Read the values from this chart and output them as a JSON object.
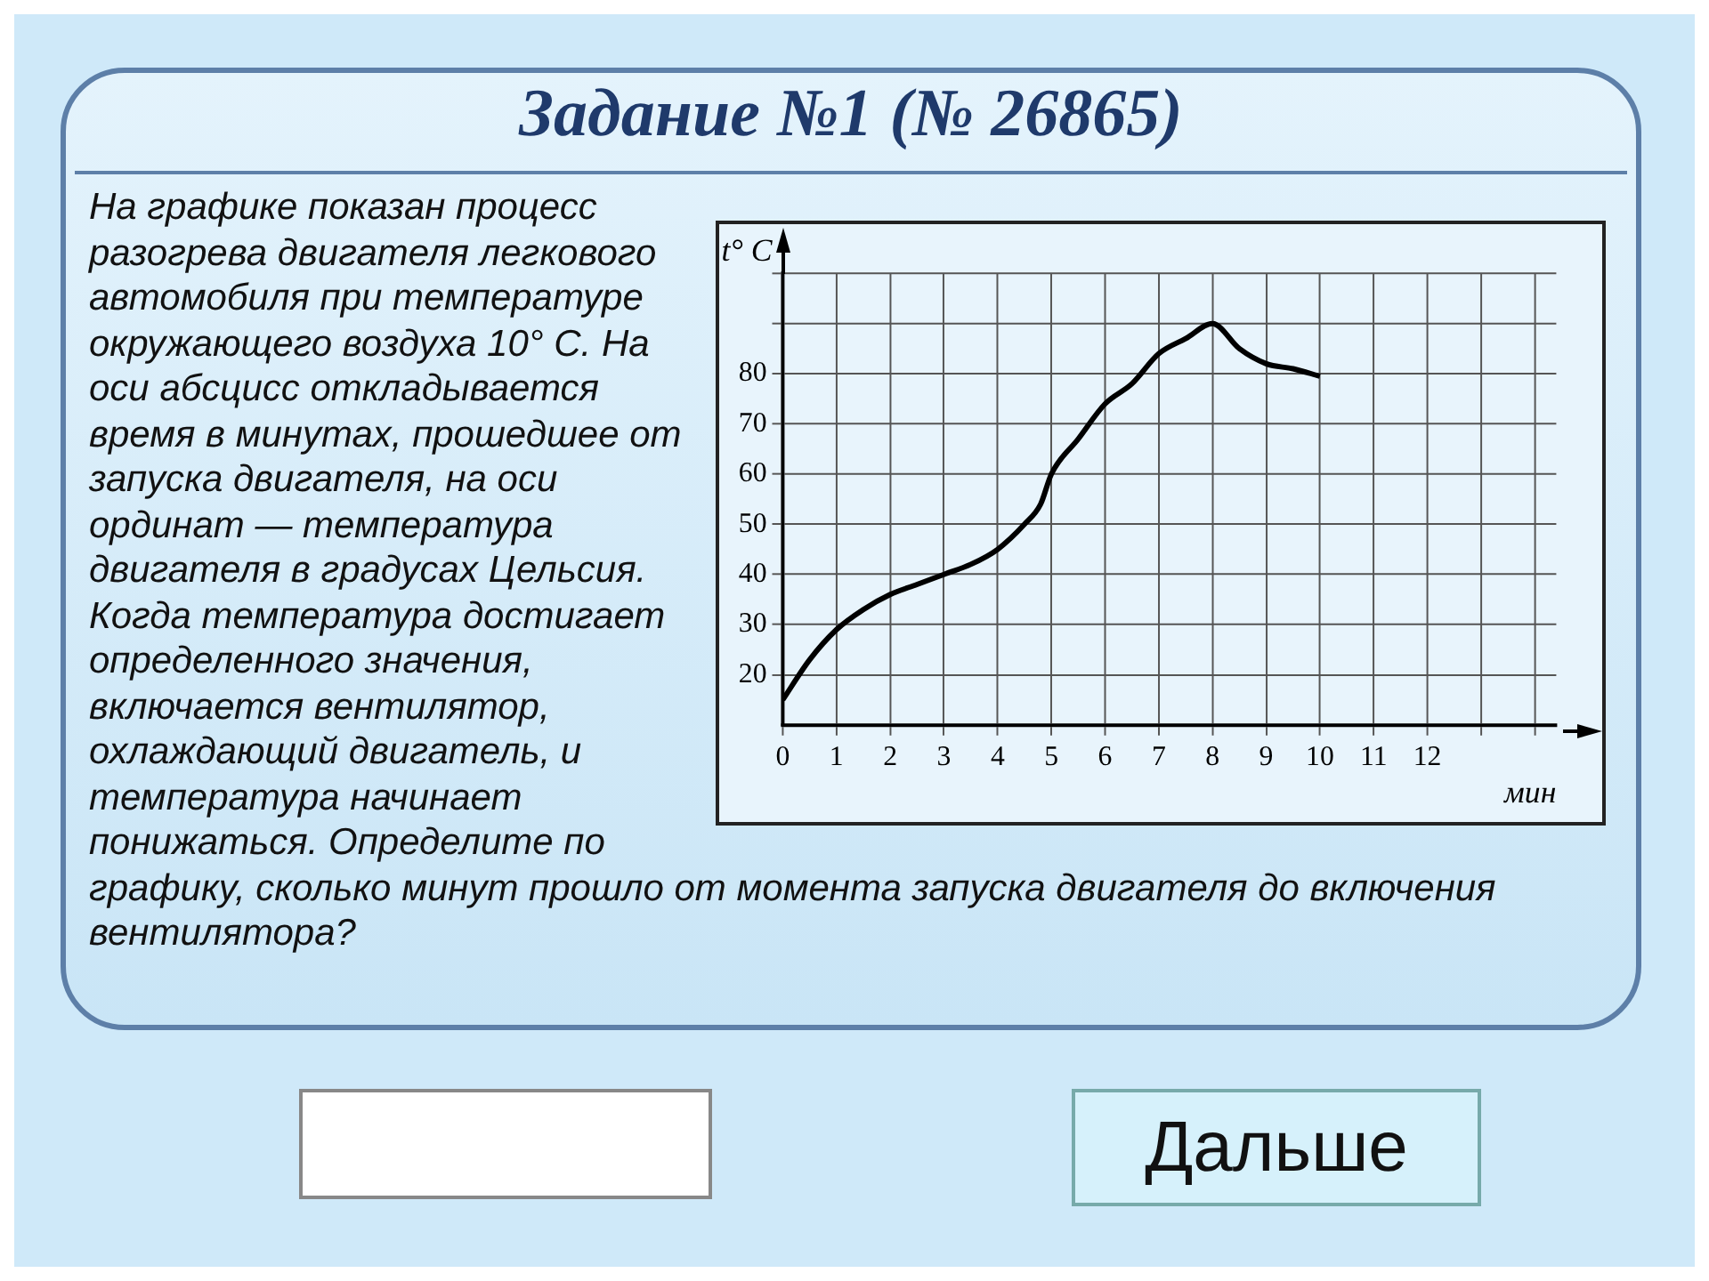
{
  "chart_data": {
    "type": "line",
    "title": "Задание №1 (№ 26865)",
    "xlabel": "мин",
    "ylabel": "t° C",
    "annotations": [
      "На графике показан процесс разогрева двигателя легкового автомобиля при температуре окружающего воздуха 10° С. На оси абсцисс откладывается время в минутах, прошедшее от запуска двигателя, на оси ординат — температура двигателя в градусах Цельсия. Когда температура достигает определенного значения, включается вентилятор, охлаждающий двигатель, и температура начинает понижаться. Определите по графику, сколько минут прошло от момента запуска двигателя до включения вентилятора?",
      "Дальше"
    ],
    "x": [
      0,
      0.5,
      1,
      1.5,
      2,
      2.5,
      3,
      3.5,
      4,
      4.5,
      4.8,
      5,
      5.5,
      6,
      6.5,
      7,
      7.5,
      8,
      8.5,
      9,
      9.5,
      10
    ],
    "series": [
      {
        "color": "#000000",
        "values": [
          15,
          23,
          29,
          33,
          36,
          38,
          40,
          42,
          45,
          50,
          54,
          60,
          67,
          74,
          78,
          84,
          87,
          90,
          85,
          82,
          81,
          79.5
        ]
      }
    ],
    "xlim": [
      0,
      14.4
    ],
    "xticks": [
      0,
      1,
      2,
      3,
      4,
      5,
      6,
      7,
      8,
      9,
      10,
      11,
      12,
      {
        "value": 13,
        "label": null
      },
      {
        "value": 14,
        "label": null
      }
    ],
    "ylim": [
      10,
      100
    ],
    "yticks": [
      20,
      30,
      40,
      50,
      60,
      70,
      80,
      {
        "value": 90,
        "label": null
      },
      {
        "value": 100,
        "label": null
      }
    ],
    "grid": true
  }
}
